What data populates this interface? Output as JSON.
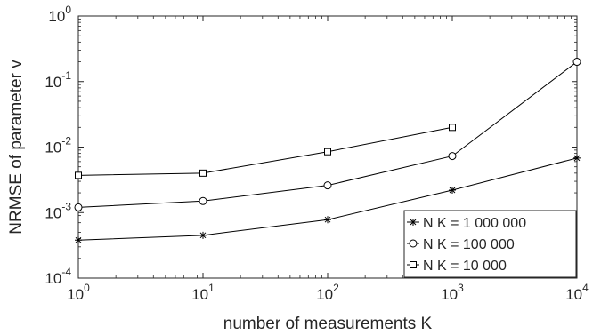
{
  "chart_data": {
    "type": "line",
    "xscale": "log",
    "yscale": "log",
    "xlabel": "number of measurements K",
    "ylabel": "NRMSE of parameter v",
    "xlim": [
      1,
      10000
    ],
    "ylim": [
      0.0001,
      1
    ],
    "xticks": [
      {
        "value": 1,
        "base": "10",
        "exp": "0"
      },
      {
        "value": 10,
        "base": "10",
        "exp": "1"
      },
      {
        "value": 100,
        "base": "10",
        "exp": "2"
      },
      {
        "value": 1000,
        "base": "10",
        "exp": "3"
      },
      {
        "value": 10000,
        "base": "10",
        "exp": "4"
      }
    ],
    "yticks": [
      {
        "value": 0.0001,
        "base": "10",
        "exp": "-4"
      },
      {
        "value": 0.001,
        "base": "10",
        "exp": "-3"
      },
      {
        "value": 0.01,
        "base": "10",
        "exp": "-2"
      },
      {
        "value": 0.1,
        "base": "10",
        "exp": "-1"
      },
      {
        "value": 1,
        "base": "10",
        "exp": "0"
      }
    ],
    "grid": false,
    "legend_position": "lower-right",
    "series": [
      {
        "name": "N K = 1 000 000",
        "marker": "asterisk",
        "x": [
          1,
          10,
          100,
          1000,
          10000
        ],
        "y": [
          0.00038,
          0.00045,
          0.00078,
          0.0022,
          0.0068
        ]
      },
      {
        "name": "N K = 100 000",
        "marker": "circle",
        "x": [
          1,
          10,
          100,
          1000,
          10000
        ],
        "y": [
          0.0012,
          0.0015,
          0.0026,
          0.0073,
          0.2
        ]
      },
      {
        "name": "N K = 10 000",
        "marker": "square",
        "x": [
          1,
          10,
          100,
          1000
        ],
        "y": [
          0.0037,
          0.004,
          0.0085,
          0.02
        ]
      }
    ]
  }
}
